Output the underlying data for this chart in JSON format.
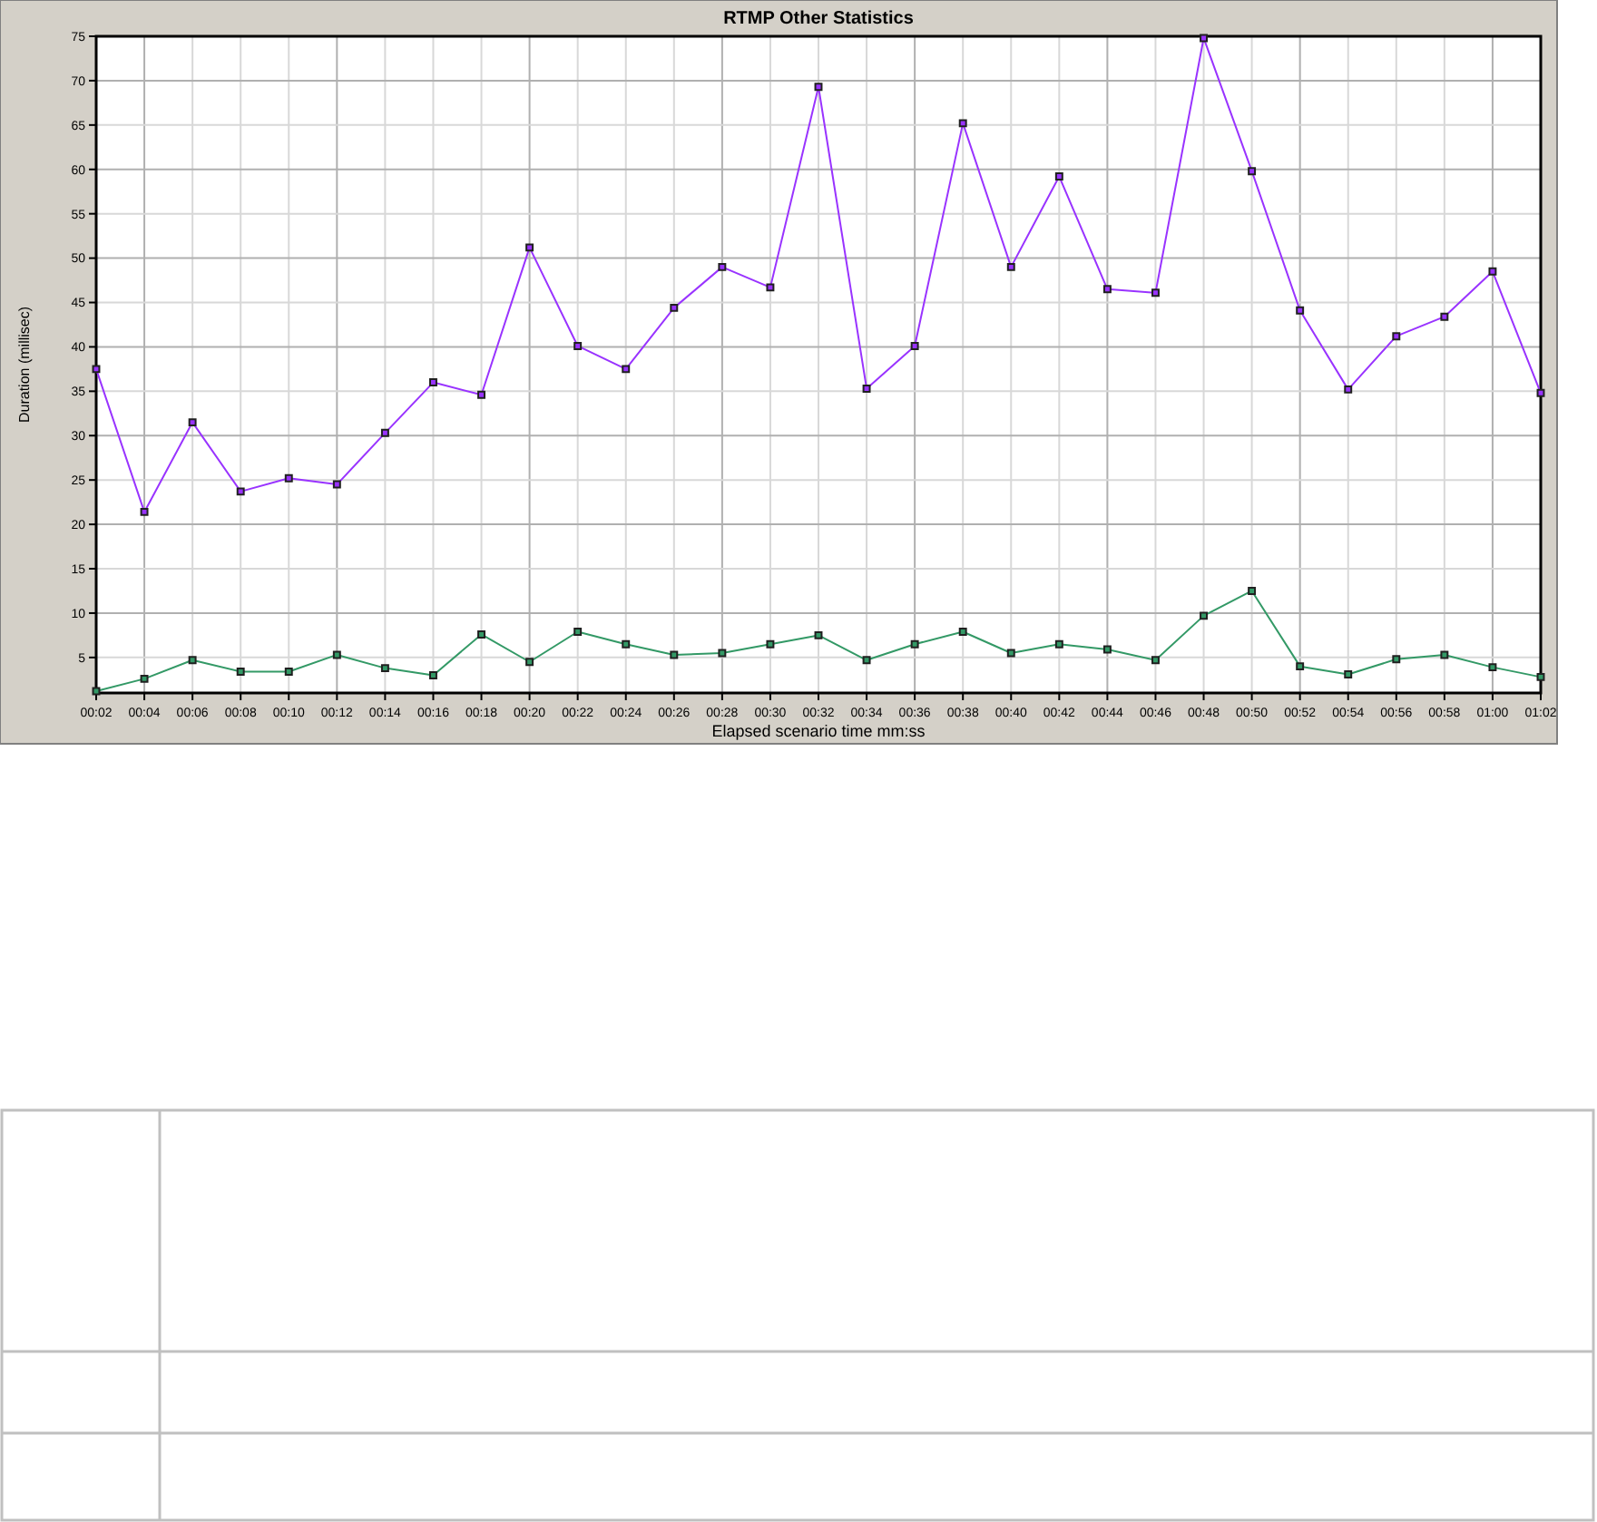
{
  "chart_data": {
    "type": "line",
    "title": "RTMP Other Statistics",
    "xlabel": "Elapsed scenario time mm:ss",
    "ylabel": "Duration (millisec)",
    "categories": [
      "00:02",
      "00:04",
      "00:06",
      "00:08",
      "00:10",
      "00:12",
      "00:14",
      "00:16",
      "00:18",
      "00:20",
      "00:22",
      "00:24",
      "00:26",
      "00:28",
      "00:30",
      "00:32",
      "00:34",
      "00:36",
      "00:38",
      "00:40",
      "00:42",
      "00:44",
      "00:46",
      "00:48",
      "00:50",
      "00:52",
      "00:54",
      "00:56",
      "00:58",
      "01:00",
      "01:02"
    ],
    "series": [
      {
        "color": "#9933ff",
        "values": [
          37.5,
          21.4,
          31.5,
          23.7,
          25.2,
          24.5,
          30.3,
          36.0,
          34.6,
          51.2,
          40.1,
          37.5,
          44.4,
          49.0,
          46.7,
          69.3,
          35.3,
          40.1,
          65.2,
          49.0,
          59.2,
          46.5,
          46.1,
          74.8,
          59.8,
          44.1,
          35.2,
          41.2,
          43.4,
          48.5,
          34.8
        ]
      },
      {
        "color": "#339966",
        "values": [
          1.2,
          2.6,
          4.7,
          3.4,
          3.4,
          5.3,
          3.8,
          3.0,
          7.6,
          4.5,
          7.9,
          6.5,
          5.3,
          5.5,
          6.5,
          7.5,
          4.7,
          6.5,
          7.9,
          5.5,
          6.5,
          5.9,
          4.7,
          9.7,
          12.5,
          4.0,
          3.1,
          4.8,
          5.3,
          3.9,
          2.8
        ]
      }
    ],
    "ylim": [
      1,
      75
    ],
    "yticks": [
      5,
      10,
      15,
      20,
      25,
      30,
      35,
      40,
      45,
      50,
      55,
      60,
      65,
      70,
      75
    ],
    "grid": true,
    "marker": "square",
    "line_style": "solid"
  }
}
